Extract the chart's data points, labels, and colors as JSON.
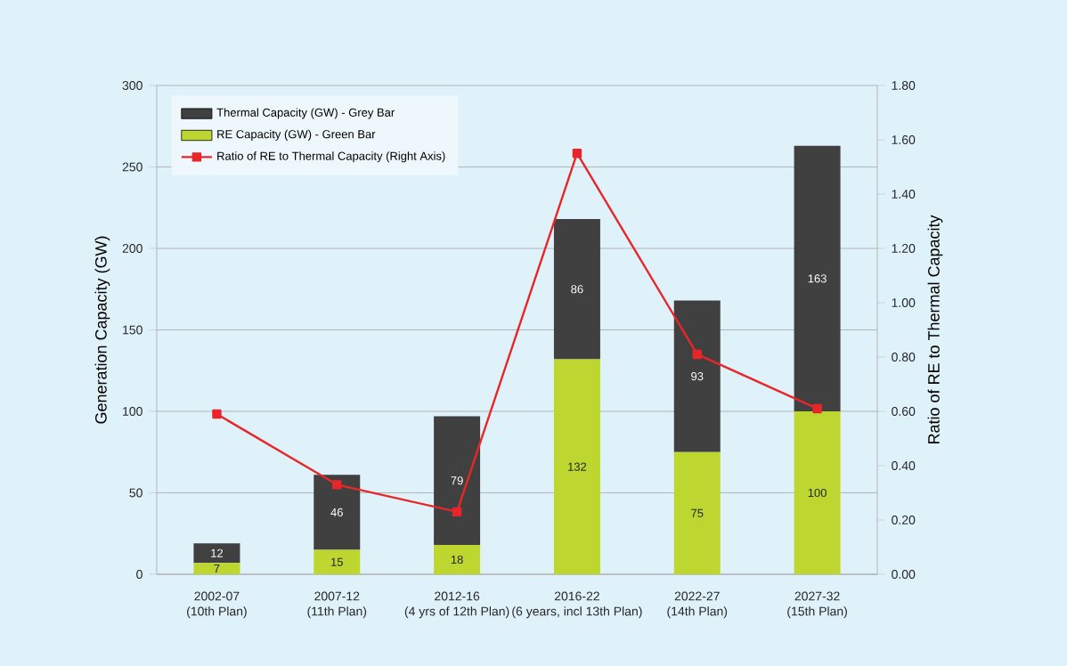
{
  "chart_data": {
    "type": "bar",
    "stacked": true,
    "ylabel": "Generation Capacity (GW)",
    "y2label": "Ratio of RE to Thermal Capacity",
    "categories": [
      "2002-07\n(10th Plan)",
      "2007-12\n(11th Plan)",
      "2012-16\n(4 yrs of 12th Plan)",
      "2016-22\n(6 years, incl 13th Plan)",
      "2022-27\n(14th Plan)",
      "2027-32\n(15th Plan)"
    ],
    "series": [
      {
        "name": "RE Capacity (GW) - Green Bar",
        "color": "#bdd630",
        "values": [
          7,
          15,
          18,
          132,
          75,
          100
        ],
        "value_labels": [
          "7",
          "15",
          "18",
          "132",
          "75",
          "100"
        ]
      },
      {
        "name": "Thermal Capacity (GW) - Grey Bar",
        "color": "#404040",
        "values": [
          12,
          46,
          79,
          86,
          93,
          163
        ],
        "value_labels": [
          "12",
          "46",
          "79",
          "86",
          "93",
          "163"
        ]
      },
      {
        "name": "Ratio of RE to Thermal Capacity (Right Axis)",
        "type": "line",
        "axis": "y2",
        "color": "#e8262a",
        "marker": "square",
        "values": [
          0.59,
          0.33,
          0.23,
          1.55,
          0.81,
          0.61
        ]
      }
    ],
    "ylim": [
      0,
      300
    ],
    "yticks": [
      0,
      50,
      100,
      150,
      200,
      250,
      300
    ],
    "y2lim": [
      0,
      1.8
    ],
    "y2ticks": [
      {
        "value": 0,
        "label": "0.00"
      },
      {
        "value": 0.2,
        "label": "0.20"
      },
      {
        "value": 0.4,
        "label": "0.40"
      },
      {
        "value": 0.6,
        "label": "0.60"
      },
      {
        "value": 0.8,
        "label": "0.80"
      },
      {
        "value": 1.0,
        "label": "1.00"
      },
      {
        "value": 1.2,
        "label": "1.20"
      },
      {
        "value": 1.4,
        "label": "1.40"
      },
      {
        "value": 1.6,
        "label": "1.60"
      },
      {
        "value": 1.8,
        "label": "1.80"
      }
    ],
    "grid": "y",
    "legend": "top left"
  }
}
